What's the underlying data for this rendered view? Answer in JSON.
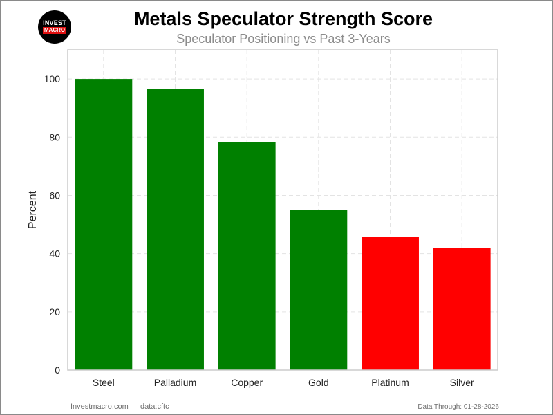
{
  "logo": {
    "line1": "INVEST",
    "line2": "MACRO"
  },
  "chart_data": {
    "type": "bar",
    "title": "Metals Speculator Strength Score",
    "subtitle": "Speculator Positioning vs Past 3-Years",
    "ylabel": "Percent",
    "xlabel": "",
    "categories": [
      "Steel",
      "Palladium",
      "Copper",
      "Gold",
      "Platinum",
      "Silver"
    ],
    "values": [
      100,
      96.5,
      78.3,
      55,
      45.8,
      42
    ],
    "colors": [
      "#008000",
      "#008000",
      "#008000",
      "#008000",
      "#ff0000",
      "#ff0000"
    ],
    "ylim": [
      0,
      110
    ],
    "yticks": [
      0,
      20,
      40,
      60,
      80,
      100
    ],
    "grid": true
  },
  "footer": {
    "site": "Investmacro.com",
    "source": "data:cftc",
    "data_through": "Data Through: 01-28-2026"
  }
}
